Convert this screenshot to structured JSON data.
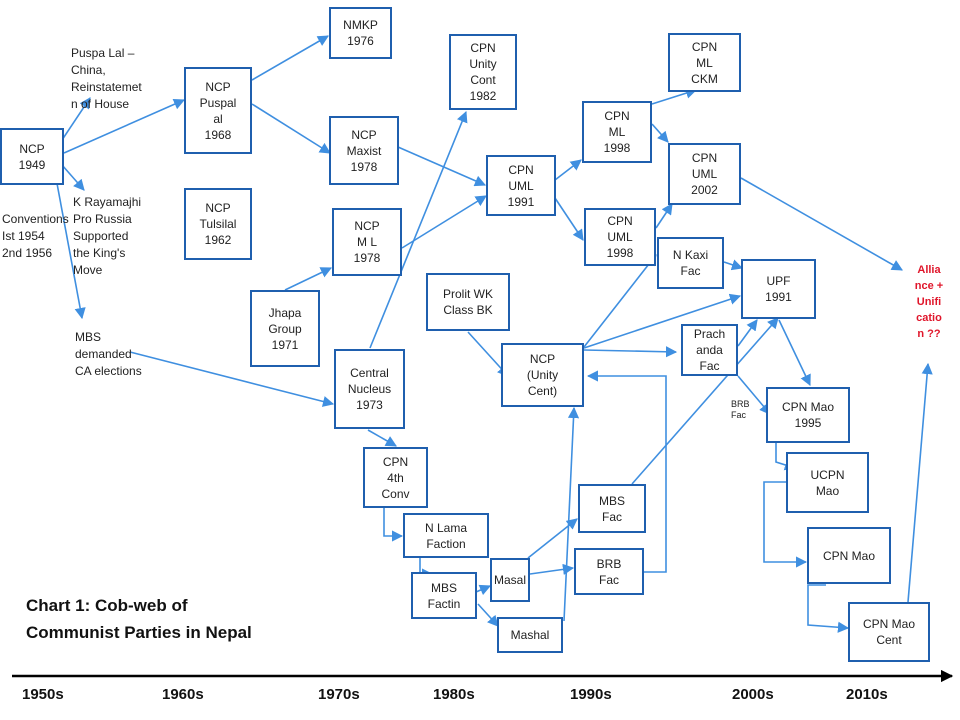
{
  "title": "Chart 1: Cob-web of\nCommunist Parties in Nepal",
  "boxes": {
    "ncp1949": "NCP\n1949",
    "ncpPuspalal": "NCP\nPuspal\nal\n1968",
    "ncpTulsilal": "NCP\nTulsilal\n1962",
    "nmkp": "NMKP\n1976",
    "ncpMaxist": "NCP\nMaxist\n1978",
    "ncpML": "NCP\nM L\n1978",
    "jhapa": "Jhapa\nGroup\n1971",
    "cpnUnity": "CPN\nUnity\nCont\n1982",
    "cpnUml1991": "CPN\nUML\n1991",
    "cpnMl1998": "CPN\nML\n1998",
    "cpnMlCkm": "CPN\nML\nCKM",
    "cpnUml2002": "CPN\nUML\n2002",
    "cpnUml1998": "CPN\nUML\n1998",
    "nkaxi": "N Kaxi\nFac",
    "upf": "UPF\n1991",
    "prachanda": "Prach\nanda\nFac",
    "prolit": "Prolit WK\nClass BK",
    "ncpUnity": "NCP\n(Unity\nCent)",
    "central": "Central\nNucleus\n1973",
    "cpn4th": "CPN\n4th\nConv",
    "nlama": "N Lama\nFaction",
    "mbsFactin": "MBS\nFactin",
    "masal": "Masal",
    "mashal": "Mashal",
    "mbsFac": "MBS\nFac",
    "brbFac": "BRB\nFac",
    "cpnMao1995": "CPN Mao\n1995",
    "ucpnMao": "UCPN\nMao",
    "cpnMao": "CPN Mao",
    "cpnMaoCent": "CPN Mao\nCent"
  },
  "notes": {
    "puspaLal": "Puspa Lal –\nChina,\nReinstatemet\nn of House",
    "conventions": "Conventions\nIst 1954\n2nd 1956",
    "rayamajhi": "K Rayamajhi\nPro Russia\nSupported\nthe King's\nMove",
    "mbsDemanded": "MBS\ndemanded\nCA elections",
    "brbSmall": "BRB\nFac",
    "alliance": "Allia\nnce +\nUnifi\ncatio\nn ??"
  },
  "decades": [
    "1950s",
    "1960s",
    "1970s",
    "1980s",
    "1990s",
    "2000s",
    "2010s"
  ],
  "colors": {
    "box_border": "#1f5fae",
    "arrow": "#3f8fe0",
    "highlight": "#e0162b",
    "axis": "#000000"
  }
}
